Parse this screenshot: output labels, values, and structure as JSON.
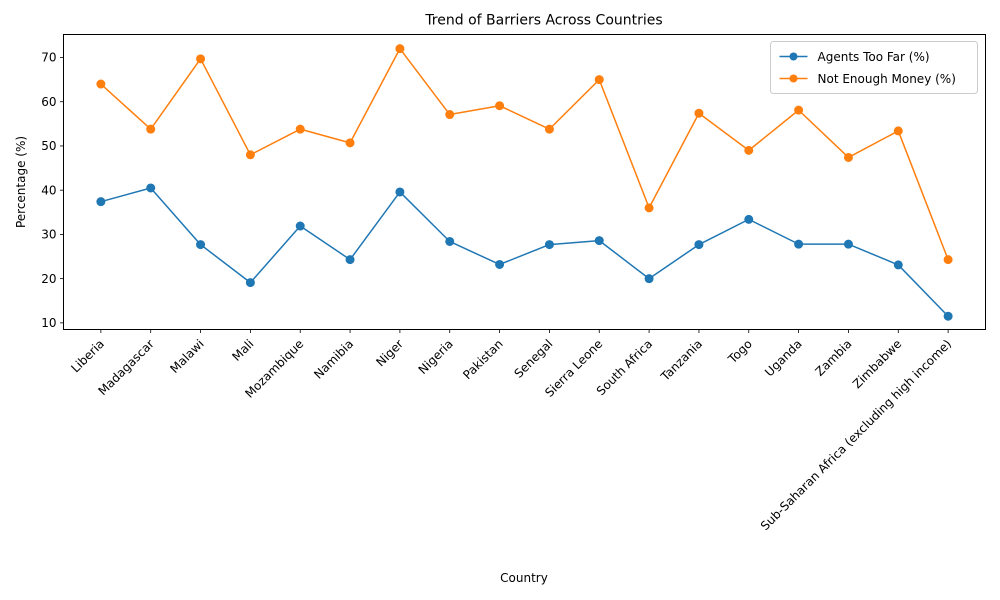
{
  "chart_data": {
    "type": "line",
    "title": "Trend of Barriers Across Countries",
    "xlabel": "Country",
    "ylabel": "Percentage (%)",
    "ylim": [
      8.5,
      75.2
    ],
    "yticks": [
      10,
      20,
      30,
      40,
      50,
      60,
      70
    ],
    "grid": false,
    "legend_position": "top-right",
    "categories": [
      "Liberia",
      "Madagascar",
      "Malawi",
      "Mali",
      "Mozambique",
      "Namibia",
      "Niger",
      "Nigeria",
      "Pakistan",
      "Senegal",
      "Sierra Leone",
      "South Africa",
      "Tanzania",
      "Togo",
      "Uganda",
      "Zambia",
      "Zimbabwe",
      "Sub-Saharan Africa (excluding high income)"
    ],
    "series": [
      {
        "name": "Agents Too Far (%)",
        "color": "#1f77b4",
        "values": [
          37.4,
          40.5,
          27.7,
          19.1,
          31.9,
          24.3,
          39.6,
          28.4,
          23.2,
          27.7,
          28.6,
          20.0,
          27.7,
          33.4,
          27.8,
          27.8,
          23.1,
          11.5
        ]
      },
      {
        "name": "Not Enough Money (%)",
        "color": "#ff7f0e",
        "values": [
          64.0,
          53.8,
          69.7,
          48.0,
          53.8,
          50.7,
          72.0,
          57.1,
          59.1,
          53.8,
          65.0,
          36.0,
          57.4,
          49.0,
          58.1,
          47.4,
          53.4,
          24.3
        ]
      }
    ]
  }
}
